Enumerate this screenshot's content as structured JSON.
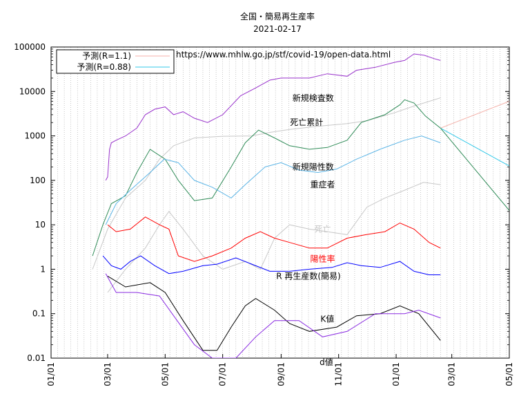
{
  "chart_data": {
    "type": "line",
    "title": "全国・簡易再生産率",
    "subtitle": "2021-02-17",
    "source_note": "https://www.mhlw.go.jp/stf/covid-19/open-data.html",
    "yscale": "log",
    "ylim": [
      0.01,
      100000
    ],
    "yticks": [
      {
        "v": 0.01,
        "label": "0.01"
      },
      {
        "v": 0.1,
        "label": "0.1"
      },
      {
        "v": 1,
        "label": "1"
      },
      {
        "v": 10,
        "label": "10"
      },
      {
        "v": 100,
        "label": "100"
      },
      {
        "v": 1000,
        "label": "1000"
      },
      {
        "v": 10000,
        "label": "10000"
      },
      {
        "v": 100000,
        "label": "100000"
      }
    ],
    "xlim": [
      "2020-01-01",
      "2021-05-01"
    ],
    "xticks": [
      "01/01",
      "03/01",
      "05/01",
      "07/01",
      "09/01",
      "11/01",
      "01/01",
      "03/01",
      "05/01"
    ],
    "xtick_dates": [
      "2020-01-01",
      "2020-03-01",
      "2020-05-01",
      "2020-07-01",
      "2020-09-01",
      "2020-11-01",
      "2021-01-01",
      "2021-03-01",
      "2021-05-01"
    ],
    "grid": "vertical weekly dotted",
    "legend_position": "top-left",
    "legend": [
      {
        "label": "予測(R=1.1)",
        "color": "#f4b0a8"
      },
      {
        "label": "予測(R=0.88)",
        "color": "#33c8e8"
      }
    ],
    "series": [
      {
        "name": "新規検査数",
        "color": "#9932cc",
        "points": [
          [
            "2020-02-28",
            100
          ],
          [
            "2020-03-01",
            120
          ],
          [
            "2020-03-03",
            500
          ],
          [
            "2020-03-05",
            700
          ],
          [
            "2020-03-10",
            800
          ],
          [
            "2020-03-20",
            1000
          ],
          [
            "2020-04-01",
            1500
          ],
          [
            "2020-04-10",
            3000
          ],
          [
            "2020-04-20",
            4000
          ],
          [
            "2020-05-01",
            4500
          ],
          [
            "2020-05-10",
            3000
          ],
          [
            "2020-05-20",
            3500
          ],
          [
            "2020-06-01",
            2500
          ],
          [
            "2020-06-15",
            2000
          ],
          [
            "2020-07-01",
            3000
          ],
          [
            "2020-07-20",
            8000
          ],
          [
            "2020-08-05",
            12000
          ],
          [
            "2020-08-20",
            18000
          ],
          [
            "2020-09-01",
            20000
          ],
          [
            "2020-09-20",
            20000
          ],
          [
            "2020-10-01",
            20000
          ],
          [
            "2020-10-20",
            25000
          ],
          [
            "2020-11-10",
            22000
          ],
          [
            "2020-11-20",
            30000
          ],
          [
            "2020-12-10",
            35000
          ],
          [
            "2020-12-30",
            45000
          ],
          [
            "2021-01-10",
            50000
          ],
          [
            "2021-01-20",
            70000
          ],
          [
            "2021-01-31",
            65000
          ],
          [
            "2021-02-10",
            55000
          ],
          [
            "2021-02-17",
            50000
          ]
        ]
      },
      {
        "name": "死亡累計",
        "color": "#c8c8c8",
        "points": [
          [
            "2020-02-14",
            1
          ],
          [
            "2020-03-01",
            8
          ],
          [
            "2020-03-20",
            40
          ],
          [
            "2020-04-10",
            100
          ],
          [
            "2020-04-25",
            300
          ],
          [
            "2020-05-10",
            600
          ],
          [
            "2020-06-01",
            900
          ],
          [
            "2020-07-01",
            980
          ],
          [
            "2020-08-01",
            1000
          ],
          [
            "2020-08-20",
            1200
          ],
          [
            "2020-09-10",
            1400
          ],
          [
            "2020-10-10",
            1650
          ],
          [
            "2020-11-10",
            1900
          ],
          [
            "2020-12-01",
            2200
          ],
          [
            "2020-12-30",
            3300
          ],
          [
            "2021-01-20",
            4700
          ],
          [
            "2021-02-17",
            7200
          ]
        ]
      },
      {
        "name": "新規陽性数",
        "color": "#2e8b57",
        "points": [
          [
            "2020-02-14",
            2
          ],
          [
            "2020-02-25",
            10
          ],
          [
            "2020-03-05",
            30
          ],
          [
            "2020-03-20",
            45
          ],
          [
            "2020-04-01",
            150
          ],
          [
            "2020-04-15",
            500
          ],
          [
            "2020-05-01",
            300
          ],
          [
            "2020-05-15",
            100
          ],
          [
            "2020-06-01",
            35
          ],
          [
            "2020-06-20",
            40
          ],
          [
            "2020-07-10",
            200
          ],
          [
            "2020-07-25",
            700
          ],
          [
            "2020-08-08",
            1350
          ],
          [
            "2020-08-25",
            900
          ],
          [
            "2020-09-10",
            600
          ],
          [
            "2020-10-01",
            500
          ],
          [
            "2020-10-20",
            550
          ],
          [
            "2020-11-10",
            800
          ],
          [
            "2020-11-25",
            2000
          ],
          [
            "2020-12-20",
            3000
          ],
          [
            "2021-01-05",
            5000
          ],
          [
            "2021-01-10",
            6500
          ],
          [
            "2021-01-20",
            5500
          ],
          [
            "2021-02-01",
            2800
          ],
          [
            "2021-02-17",
            1500
          ]
        ]
      },
      {
        "name": "重症者",
        "color": "#5ab4e6",
        "points": [
          [
            "2020-02-28",
            10
          ],
          [
            "2020-03-10",
            30
          ],
          [
            "2020-03-25",
            60
          ],
          [
            "2020-04-15",
            150
          ],
          [
            "2020-04-30",
            300
          ],
          [
            "2020-05-15",
            250
          ],
          [
            "2020-06-01",
            100
          ],
          [
            "2020-06-20",
            70
          ],
          [
            "2020-07-10",
            40
          ],
          [
            "2020-07-25",
            80
          ],
          [
            "2020-08-15",
            200
          ],
          [
            "2020-09-01",
            250
          ],
          [
            "2020-09-20",
            170
          ],
          [
            "2020-10-10",
            150
          ],
          [
            "2020-10-30",
            180
          ],
          [
            "2020-11-20",
            300
          ],
          [
            "2020-12-15",
            500
          ],
          [
            "2021-01-10",
            800
          ],
          [
            "2021-01-28",
            1000
          ],
          [
            "2021-02-17",
            700
          ]
        ]
      },
      {
        "name": "死亡",
        "color": "#c8c8c8",
        "points": [
          [
            "2020-03-01",
            0.3
          ],
          [
            "2020-03-20",
            1
          ],
          [
            "2020-04-10",
            3
          ],
          [
            "2020-04-25",
            10
          ],
          [
            "2020-05-05",
            20
          ],
          [
            "2020-05-20",
            8
          ],
          [
            "2020-06-10",
            2
          ],
          [
            "2020-07-01",
            1
          ],
          [
            "2020-07-25",
            1.5
          ],
          [
            "2020-08-10",
            1
          ],
          [
            "2020-08-25",
            5
          ],
          [
            "2020-09-10",
            10
          ],
          [
            "2020-10-01",
            8
          ],
          [
            "2020-10-20",
            7
          ],
          [
            "2020-11-10",
            6
          ],
          [
            "2020-12-01",
            25
          ],
          [
            "2020-12-20",
            40
          ],
          [
            "2021-01-10",
            60
          ],
          [
            "2021-01-30",
            90
          ],
          [
            "2021-02-17",
            80
          ]
        ]
      },
      {
        "name": "陽性率",
        "color": "#ff0000",
        "points": [
          [
            "2020-03-01",
            10
          ],
          [
            "2020-03-10",
            7
          ],
          [
            "2020-03-25",
            8
          ],
          [
            "2020-04-10",
            15
          ],
          [
            "2020-04-25",
            10
          ],
          [
            "2020-05-05",
            8
          ],
          [
            "2020-05-15",
            2
          ],
          [
            "2020-06-01",
            1.5
          ],
          [
            "2020-06-20",
            2
          ],
          [
            "2020-07-10",
            3
          ],
          [
            "2020-07-25",
            5
          ],
          [
            "2020-08-10",
            7
          ],
          [
            "2020-08-25",
            5
          ],
          [
            "2020-09-10",
            4
          ],
          [
            "2020-10-01",
            3
          ],
          [
            "2020-10-20",
            3
          ],
          [
            "2020-11-10",
            5
          ],
          [
            "2020-11-30",
            6
          ],
          [
            "2020-12-20",
            7
          ],
          [
            "2021-01-05",
            11
          ],
          [
            "2021-01-20",
            8
          ],
          [
            "2021-02-05",
            4
          ],
          [
            "2021-02-17",
            3
          ]
        ]
      },
      {
        "name": "R 再生産数(簡易)",
        "color": "#0000ff",
        "points": [
          [
            "2020-02-25",
            2
          ],
          [
            "2020-03-05",
            1.2
          ],
          [
            "2020-03-15",
            1
          ],
          [
            "2020-03-25",
            1.5
          ],
          [
            "2020-04-05",
            2
          ],
          [
            "2020-04-20",
            1.2
          ],
          [
            "2020-05-05",
            0.8
          ],
          [
            "2020-05-20",
            0.9
          ],
          [
            "2020-06-10",
            1.2
          ],
          [
            "2020-06-25",
            1.3
          ],
          [
            "2020-07-15",
            1.8
          ],
          [
            "2020-08-01",
            1.3
          ],
          [
            "2020-08-20",
            0.9
          ],
          [
            "2020-09-10",
            0.9
          ],
          [
            "2020-10-01",
            1
          ],
          [
            "2020-10-25",
            1.1
          ],
          [
            "2020-11-10",
            1.4
          ],
          [
            "2020-11-25",
            1.2
          ],
          [
            "2020-12-15",
            1.1
          ],
          [
            "2021-01-05",
            1.5
          ],
          [
            "2021-01-20",
            0.9
          ],
          [
            "2021-02-05",
            0.75
          ],
          [
            "2021-02-17",
            0.75
          ]
        ]
      },
      {
        "name": "K値",
        "color": "#000000",
        "points": [
          [
            "2020-03-01",
            0.7
          ],
          [
            "2020-03-20",
            0.4
          ],
          [
            "2020-04-15",
            0.5
          ],
          [
            "2020-05-01",
            0.3
          ],
          [
            "2020-05-20",
            0.07
          ],
          [
            "2020-06-10",
            0.015
          ],
          [
            "2020-06-25",
            0.015
          ],
          [
            "2020-07-10",
            0.05
          ],
          [
            "2020-07-25",
            0.15
          ],
          [
            "2020-08-05",
            0.22
          ],
          [
            "2020-08-25",
            0.12
          ],
          [
            "2020-09-10",
            0.06
          ],
          [
            "2020-10-01",
            0.04
          ],
          [
            "2020-10-30",
            0.05
          ],
          [
            "2020-11-20",
            0.09
          ],
          [
            "2020-12-15",
            0.1
          ],
          [
            "2021-01-05",
            0.15
          ],
          [
            "2021-01-25",
            0.1
          ],
          [
            "2021-02-17",
            0.025
          ]
        ]
      },
      {
        "name": "d値",
        "color": "#8a2be2",
        "points": [
          [
            "2020-02-28",
            0.8
          ],
          [
            "2020-03-10",
            0.3
          ],
          [
            "2020-04-01",
            0.3
          ],
          [
            "2020-04-25",
            0.25
          ],
          [
            "2020-05-10",
            0.09
          ],
          [
            "2020-06-01",
            0.02
          ],
          [
            "2020-06-20",
            0.01
          ],
          [
            "2020-07-15",
            0.01
          ],
          [
            "2020-08-05",
            0.03
          ],
          [
            "2020-08-25",
            0.07
          ],
          [
            "2020-09-20",
            0.07
          ],
          [
            "2020-10-15",
            0.03
          ],
          [
            "2020-11-10",
            0.04
          ],
          [
            "2020-12-10",
            0.1
          ],
          [
            "2021-01-10",
            0.1
          ],
          [
            "2021-01-25",
            0.12
          ],
          [
            "2021-02-17",
            0.08
          ]
        ]
      },
      {
        "name": "予測(R=1.1)",
        "color": "#f4b0a8",
        "points": [
          [
            "2021-02-17",
            1500
          ],
          [
            "2021-05-01",
            6000
          ]
        ]
      },
      {
        "name": "予測(R=0.88)",
        "color": "#33c8e8",
        "points": [
          [
            "2021-02-17",
            1500
          ],
          [
            "2021-05-01",
            210
          ]
        ]
      },
      {
        "name": "",
        "color": "#2e8b57",
        "points": [
          [
            "2021-02-17",
            1500
          ],
          [
            "2021-05-01",
            21
          ]
        ]
      }
    ],
    "annotations": [
      {
        "text": "新規検査数",
        "color": "#000000",
        "x": "2020-10-05",
        "y": 7000
      },
      {
        "text": "死亡累計",
        "color": "#000000",
        "x": "2020-09-28",
        "y": 2000
      },
      {
        "text": "新規陽性数",
        "color": "#000000",
        "x": "2020-10-05",
        "y": 200
      },
      {
        "text": "重症者",
        "color": "#000000",
        "x": "2020-10-15",
        "y": 80
      },
      {
        "text": "死亡",
        "color": "#c8c8c8",
        "x": "2020-10-15",
        "y": 8
      },
      {
        "text": "陽性率",
        "color": "#ff0000",
        "x": "2020-10-15",
        "y": 1.7
      },
      {
        "text": "R 再生産数(簡易)",
        "color": "#000000",
        "x": "2020-09-30",
        "y": 0.7
      },
      {
        "text": "K値",
        "color": "#000000",
        "x": "2020-10-20",
        "y": 0.075
      },
      {
        "text": "d値",
        "color": "#000000",
        "x": "2020-10-19",
        "y": 0.008
      }
    ]
  }
}
